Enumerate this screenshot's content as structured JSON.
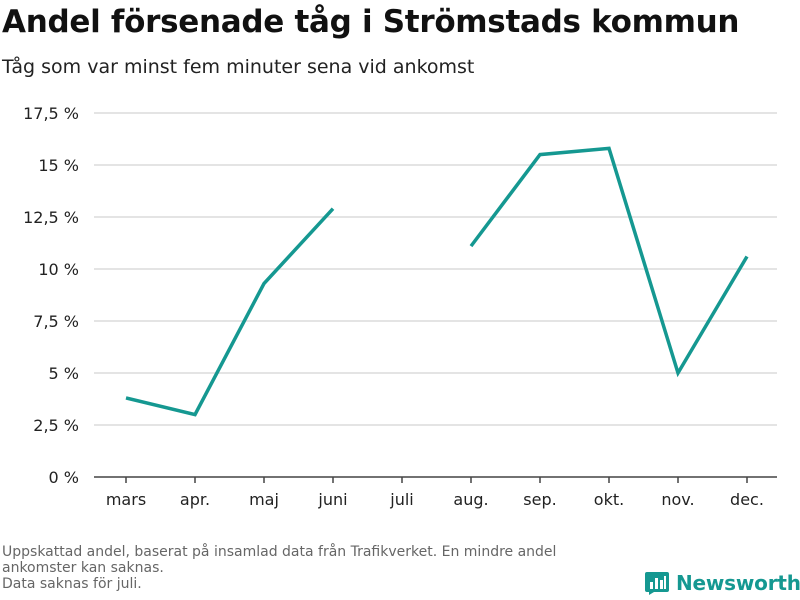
{
  "header": {
    "title": "Andel försenade tåg i Strömstads kommun",
    "subtitle": "Tåg som var minst fem minuter sena vid ankomst"
  },
  "chart_data": {
    "type": "line",
    "title": "Andel försenade tåg i Strömstads kommun",
    "subtitle": "Tåg som var minst fem minuter sena vid ankomst",
    "xlabel": "",
    "ylabel": "",
    "categories": [
      "mars",
      "apr.",
      "maj",
      "juni",
      "juli",
      "aug.",
      "sep.",
      "okt.",
      "nov.",
      "dec."
    ],
    "series": [
      {
        "name": "Andel försenade tåg",
        "color": "#159891",
        "values": [
          3.8,
          3.0,
          9.3,
          12.9,
          null,
          11.1,
          15.5,
          15.8,
          5.0,
          10.6
        ]
      }
    ],
    "ylim": [
      0,
      17.5
    ],
    "yticks": [
      0,
      2.5,
      5,
      7.5,
      10,
      12.5,
      15,
      17.5
    ],
    "ytick_labels": [
      "0 %",
      "2,5 %",
      "5 %",
      "7,5 %",
      "10 %",
      "12,5 %",
      "15 %",
      "17,5 %"
    ],
    "grid": true
  },
  "footnote": {
    "line1": "Uppskattad andel, baserat på insamlad data från Trafikverket. En mindre andel",
    "line2": "ankomster kan saknas.",
    "line3": "Data saknas för juli."
  },
  "brand": {
    "name": "Newsworthy",
    "icon": "newsworthy-logo-icon",
    "color": "#159891"
  }
}
